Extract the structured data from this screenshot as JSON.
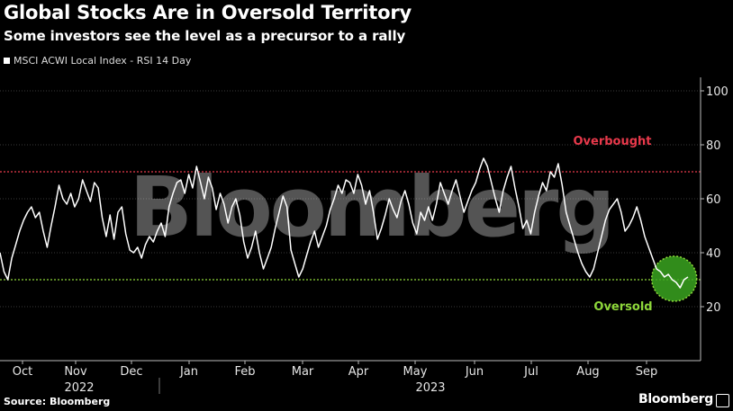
{
  "header": {
    "title": "Global Stocks Are in Oversold Territory",
    "subtitle": "Some investors see the level as a precursor to a rally"
  },
  "legend": {
    "label": "MSCI ACWI Local Index - RSI 14 Day"
  },
  "footer": {
    "source": "Source: Bloomberg",
    "brand": "Bloomberg"
  },
  "watermark": "Bloomberg",
  "colors": {
    "line": "#ffffff",
    "overbought": "#e8394b",
    "oversold": "#8ed83a",
    "grid": "#3a3a3a",
    "background": "#000000"
  },
  "chart_data": {
    "type": "line",
    "ylim": [
      0,
      105
    ],
    "yticks": [
      20,
      40,
      60,
      80,
      100
    ],
    "grid": "horizontal",
    "legend_position": "top-left",
    "months": [
      "Oct",
      "Nov",
      "Dec",
      "Jan",
      "Feb",
      "Mar",
      "Apr",
      "May",
      "Jun",
      "Jul",
      "Aug",
      "Sep"
    ],
    "years": [
      "2022",
      "2023"
    ],
    "overbought": {
      "label": "Overbought",
      "value": 70
    },
    "oversold": {
      "label": "Oversold",
      "value": 30
    },
    "series": [
      {
        "values": [
          40,
          33,
          30,
          38,
          43,
          48,
          52,
          55,
          57,
          53,
          55,
          48,
          42,
          50,
          57,
          65,
          60,
          58,
          62,
          57,
          60,
          67,
          63,
          59,
          66,
          64,
          53,
          46,
          54,
          45,
          55,
          57,
          47,
          41,
          40,
          42,
          38,
          43,
          46,
          44,
          48,
          51,
          46,
          57,
          62,
          66,
          67,
          62,
          69,
          64,
          72,
          66,
          60,
          68,
          64,
          56,
          62,
          58,
          51,
          57,
          60,
          54,
          44,
          38,
          42,
          48,
          40,
          34,
          38,
          42,
          49,
          55,
          61,
          57,
          41,
          36,
          31,
          34,
          39,
          44,
          48,
          42,
          46,
          50,
          56,
          60,
          65,
          62,
          67,
          66,
          62,
          69,
          65,
          58,
          63,
          55,
          45,
          49,
          54,
          60,
          56,
          53,
          59,
          63,
          58,
          51,
          47,
          55,
          52,
          57,
          52,
          58,
          66,
          62,
          58,
          63,
          67,
          61,
          55,
          59,
          63,
          66,
          71,
          75,
          72,
          66,
          60,
          55,
          63,
          68,
          72,
          64,
          57,
          49,
          52,
          47,
          55,
          61,
          66,
          63,
          70,
          68,
          73,
          65,
          55,
          50,
          45,
          40,
          36,
          33,
          31,
          34,
          40,
          46,
          52,
          56,
          58,
          60,
          55,
          48,
          50,
          53,
          57,
          52,
          46,
          42,
          38,
          34,
          33,
          31,
          32,
          30,
          29,
          27,
          30,
          31
        ]
      }
    ]
  }
}
